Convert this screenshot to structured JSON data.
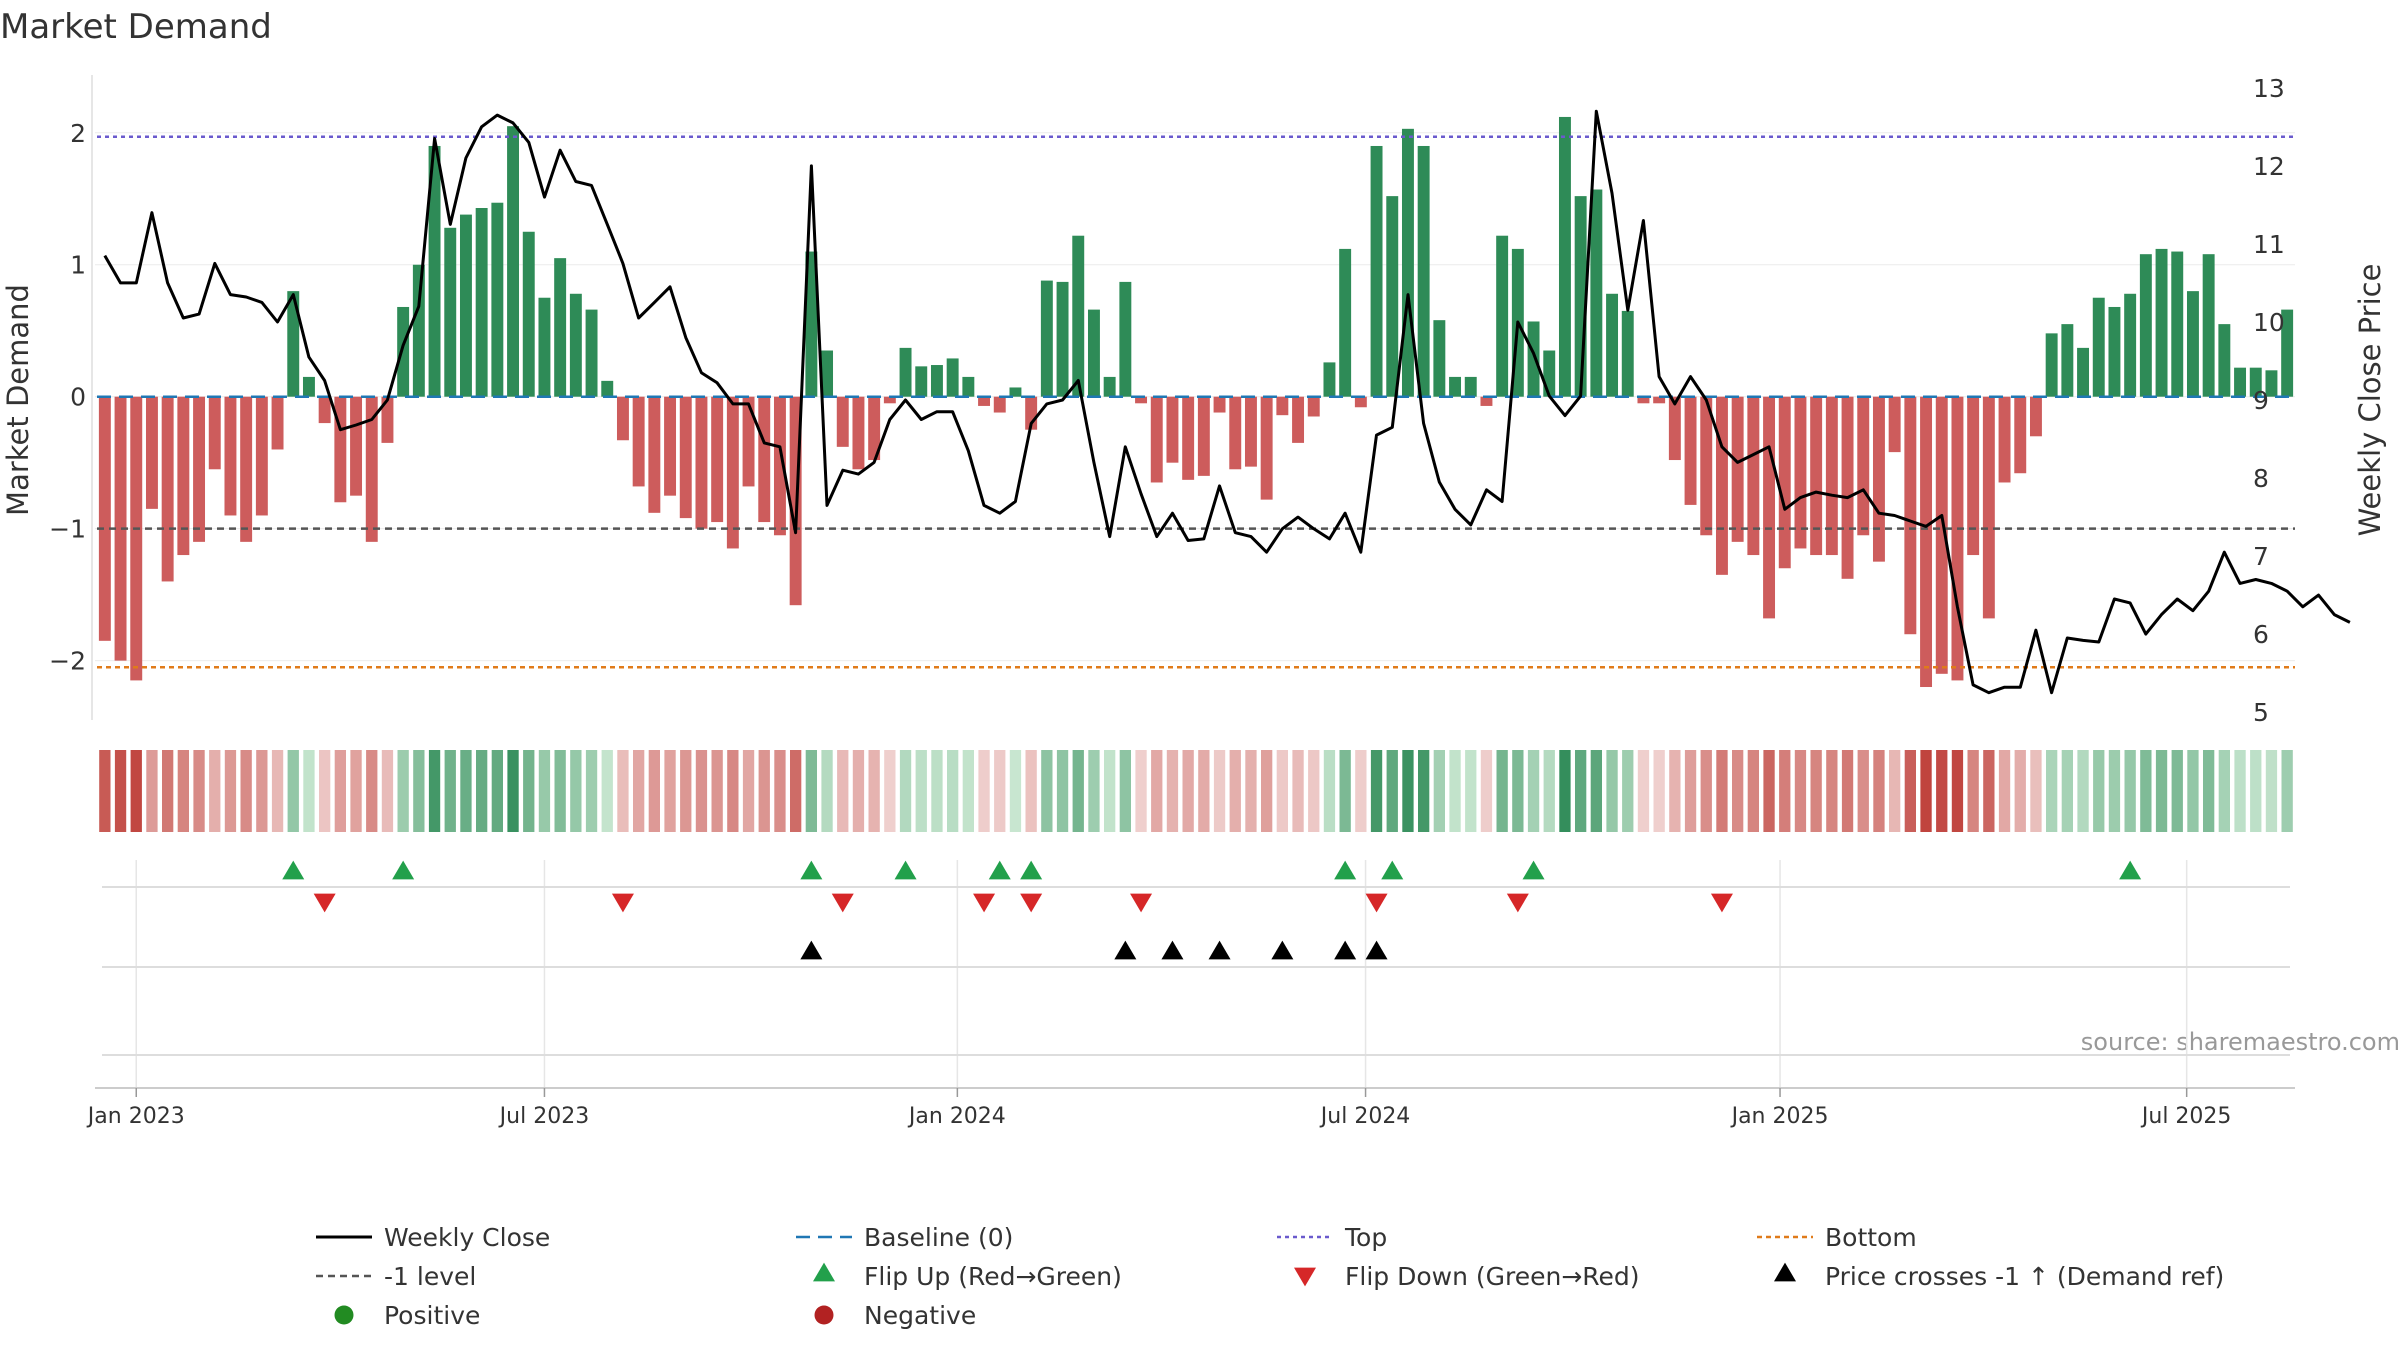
{
  "chart_data": {
    "type": "bar",
    "title": "Market Demand",
    "ylabel": "Market Demand",
    "y2label": "Weekly Close Price",
    "ylim": [
      -2.45,
      2.4
    ],
    "y2lim": [
      4.9,
      13.1
    ],
    "yticks": [
      "−2",
      "−1",
      "0",
      "1",
      "2"
    ],
    "yticks_values": [
      -2,
      -1,
      0,
      1,
      2
    ],
    "y2ticks": [
      5,
      6,
      7,
      8,
      9,
      10,
      11,
      12,
      13
    ],
    "reference_lines": {
      "top": 1.97,
      "bottom": -2.05,
      "minus_one": -1.0,
      "baseline": 0
    },
    "x_ticks": [
      {
        "label": "Jan 2023",
        "week": 0
      },
      {
        "label": "Jul 2023",
        "week": 26
      },
      {
        "label": "Jan 2024",
        "week": 52.3
      },
      {
        "label": "Jul 2024",
        "week": 78.3
      },
      {
        "label": "Jan 2025",
        "week": 104.7
      },
      {
        "label": "Jul 2025",
        "week": 130.6
      }
    ],
    "first_week": -2,
    "demand": [
      -1.85,
      -2.0,
      -2.15,
      -0.85,
      -1.4,
      -1.2,
      -1.1,
      -0.55,
      -0.9,
      -1.1,
      -0.9,
      -0.4,
      0.8,
      0.15,
      -0.2,
      -0.8,
      -0.75,
      -1.1,
      -0.35,
      0.68,
      1.0,
      1.9,
      1.28,
      1.38,
      1.43,
      1.47,
      2.05,
      1.25,
      0.75,
      1.05,
      0.78,
      0.66,
      0.12,
      -0.33,
      -0.68,
      -0.88,
      -0.75,
      -0.92,
      -1.0,
      -0.95,
      -1.15,
      -0.68,
      -0.95,
      -1.05,
      -1.58,
      1.1,
      0.35,
      -0.38,
      -0.55,
      -0.48,
      -0.05,
      0.37,
      0.23,
      0.24,
      0.29,
      0.15,
      -0.07,
      -0.12,
      0.07,
      -0.25,
      0.88,
      0.87,
      1.22,
      0.66,
      0.15,
      0.87,
      -0.05,
      -0.65,
      -0.5,
      -0.63,
      -0.6,
      -0.12,
      -0.55,
      -0.53,
      -0.78,
      -0.14,
      -0.35,
      -0.15,
      0.26,
      1.12,
      -0.08,
      1.9,
      1.52,
      2.03,
      1.9,
      0.58,
      0.15,
      0.15,
      -0.07,
      1.22,
      1.12,
      0.57,
      0.35,
      2.12,
      1.52,
      1.57,
      0.78,
      0.65,
      -0.05,
      -0.05,
      -0.48,
      -0.82,
      -1.05,
      -1.35,
      -1.1,
      -1.2,
      -1.68,
      -1.3,
      -1.15,
      -1.2,
      -1.2,
      -1.38,
      -1.05,
      -1.25,
      -0.42,
      -1.8,
      -2.2,
      -2.1,
      -2.15,
      -1.2,
      -1.68,
      -0.65,
      -0.58,
      -0.3,
      0.48,
      0.55,
      0.37,
      0.75,
      0.68,
      0.78,
      1.08,
      1.12,
      1.1,
      0.8,
      1.08,
      0.55,
      0.22,
      0.22,
      0.2,
      0.66
    ],
    "close": [
      10.85,
      10.5,
      10.5,
      11.4,
      10.5,
      10.05,
      10.1,
      10.75,
      10.35,
      10.32,
      10.25,
      10.0,
      10.35,
      9.55,
      9.25,
      8.62,
      8.68,
      8.75,
      9.0,
      9.7,
      10.2,
      12.35,
      11.25,
      12.1,
      12.5,
      12.65,
      12.55,
      12.3,
      11.6,
      12.2,
      11.8,
      11.75,
      11.25,
      10.75,
      10.05,
      10.25,
      10.45,
      9.8,
      9.35,
      9.22,
      8.95,
      8.95,
      8.45,
      8.4,
      7.3,
      12.0,
      7.65,
      8.1,
      8.05,
      8.2,
      8.75,
      9.0,
      8.75,
      8.85,
      8.85,
      8.35,
      7.65,
      7.55,
      7.7,
      8.7,
      8.95,
      9.0,
      9.25,
      8.2,
      7.25,
      8.4,
      7.8,
      7.25,
      7.55,
      7.2,
      7.22,
      7.9,
      7.3,
      7.25,
      7.05,
      7.35,
      7.5,
      7.35,
      7.22,
      7.55,
      7.05,
      8.55,
      8.65,
      10.35,
      8.7,
      7.95,
      7.6,
      7.4,
      7.85,
      7.7,
      10.0,
      9.6,
      9.05,
      8.8,
      9.05,
      12.7,
      11.65,
      10.15,
      11.3,
      9.3,
      8.95,
      9.3,
      9.0,
      8.4,
      8.2,
      8.3,
      8.4,
      7.6,
      7.75,
      7.82,
      7.78,
      7.75,
      7.85,
      7.55,
      7.52,
      7.45,
      7.38,
      7.52,
      6.35,
      5.35,
      5.25,
      5.32,
      5.32,
      6.05,
      5.25,
      5.95,
      5.92,
      5.9,
      6.45,
      6.4,
      6.0,
      6.25,
      6.45,
      6.3,
      6.55,
      7.05,
      6.65,
      6.7,
      6.65,
      6.55,
      6.35,
      6.5,
      6.25,
      6.15
    ],
    "flip_up_weeks": [
      10,
      17,
      43,
      49,
      55,
      57,
      77,
      80,
      89,
      127
    ],
    "flip_down_weeks": [
      12,
      31,
      45,
      54,
      57,
      64,
      79,
      88,
      101
    ],
    "price_cross_weeks": [
      43,
      63,
      66,
      69,
      73,
      77,
      79
    ],
    "source": "source: sharemaestro.com",
    "legend": [
      {
        "label": "Weekly Close",
        "kind": "line-black"
      },
      {
        "label": "Baseline (0)",
        "kind": "dash-blue"
      },
      {
        "label": "Top",
        "kind": "dot-purple"
      },
      {
        "label": "Bottom",
        "kind": "dot-orange"
      },
      {
        "label": "-1 level",
        "kind": "dash-gray"
      },
      {
        "label": "Flip Up (Red→Green)",
        "kind": "tri-up-green"
      },
      {
        "label": "Flip Down (Green→Red)",
        "kind": "tri-down-red"
      },
      {
        "label": "Price crosses -1 ↑ (Demand ref)",
        "kind": "tri-up-black"
      },
      {
        "label": "Positive",
        "kind": "dot-green"
      },
      {
        "label": "Negative",
        "kind": "dot-red"
      }
    ]
  },
  "colors": {
    "positive_bar": "#2e8b57",
    "negative_bar": "#cd5c5c",
    "price_line": "#000000",
    "baseline": "#1f77b4",
    "top_line": "#6a5acd",
    "bottom_line": "#e07b1a",
    "minus_one_line": "#555555",
    "flip_up": "#22a04b",
    "flip_down": "#d62728",
    "cross_marker": "#000000",
    "legend_positive": "#228b22",
    "legend_negative": "#b22222"
  }
}
